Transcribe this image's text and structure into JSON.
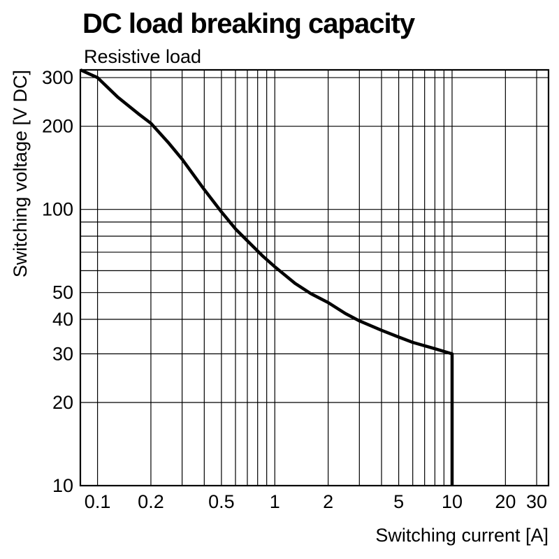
{
  "page": {
    "background": "#ffffff",
    "foreground": "#000000"
  },
  "header": {
    "title": "DC load breaking capacity",
    "subtitle": "Resistive load"
  },
  "chart_data": {
    "type": "line",
    "title": "DC load breaking capacity",
    "subtitle": "Resistive load",
    "xlabel": "Switching current [A]",
    "ylabel": "Switching voltage [V DC]",
    "x_scale": "log",
    "y_scale": "log",
    "xlim": [
      0.08,
      35
    ],
    "ylim": [
      10,
      320
    ],
    "x_ticks": [
      0.1,
      0.2,
      0.5,
      1,
      2,
      5,
      10,
      20,
      30
    ],
    "y_ticks": [
      10,
      20,
      30,
      40,
      50,
      100,
      200,
      300
    ],
    "x_gridlines": [
      0.1,
      0.2,
      0.3,
      0.4,
      0.5,
      0.6,
      0.7,
      0.8,
      0.9,
      1,
      2,
      3,
      4,
      5,
      6,
      7,
      8,
      9,
      10,
      20,
      30
    ],
    "y_gridlines": [
      10,
      20,
      30,
      40,
      50,
      60,
      70,
      80,
      90,
      100,
      200,
      300
    ],
    "grid": true,
    "legend": "none",
    "line_color": "#000000",
    "grid_color": "#000000",
    "series": [
      {
        "name": "Resistive load",
        "points": [
          [
            0.08,
            320
          ],
          [
            0.1,
            300
          ],
          [
            0.13,
            255
          ],
          [
            0.17,
            222
          ],
          [
            0.2,
            205
          ],
          [
            0.25,
            175
          ],
          [
            0.3,
            152
          ],
          [
            0.4,
            118
          ],
          [
            0.5,
            98
          ],
          [
            0.6,
            85
          ],
          [
            0.7,
            77
          ],
          [
            0.85,
            68
          ],
          [
            1.0,
            62
          ],
          [
            1.3,
            54
          ],
          [
            1.6,
            49.5
          ],
          [
            2.0,
            46
          ],
          [
            2.5,
            42
          ],
          [
            3.0,
            39.5
          ],
          [
            4.0,
            36.5
          ],
          [
            5.0,
            34.5
          ],
          [
            6.0,
            33
          ],
          [
            8.0,
            31.3
          ],
          [
            10.0,
            30
          ],
          [
            10.0,
            10
          ]
        ]
      }
    ]
  }
}
